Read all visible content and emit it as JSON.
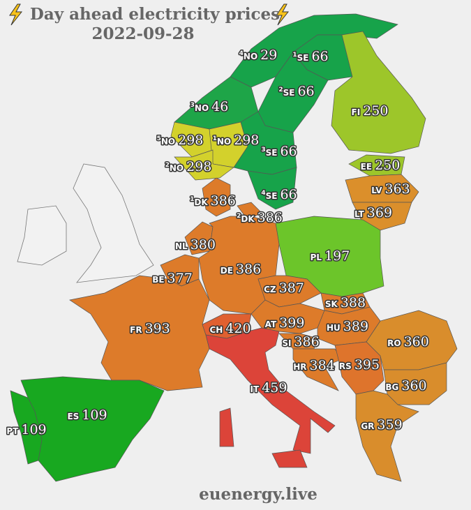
{
  "title": "Day ahead electricity prices",
  "date": "2022-09-28",
  "source": "euenergy.live",
  "regions": [
    {
      "code": "NO",
      "zone": "4",
      "price": 29,
      "color": "#17a34a"
    },
    {
      "code": "SE",
      "zone": "1",
      "price": 66,
      "color": "#17a34a"
    },
    {
      "code": "SE",
      "zone": "2",
      "price": 66,
      "color": "#17a34a"
    },
    {
      "code": "NO",
      "zone": "3",
      "price": 46,
      "color": "#1ea548"
    },
    {
      "code": "FI",
      "price": 250,
      "color": "#9dc62a"
    },
    {
      "code": "NO",
      "zone": "5",
      "price": 298,
      "color": "#d3d12c"
    },
    {
      "code": "NO",
      "zone": "1",
      "price": 298,
      "color": "#d3d12c"
    },
    {
      "code": "SE",
      "zone": "3",
      "price": 66,
      "color": "#17a34a"
    },
    {
      "code": "NO",
      "zone": "2",
      "price": 298,
      "color": "#d3d12c"
    },
    {
      "code": "EE",
      "price": 250,
      "color": "#9dc62a"
    },
    {
      "code": "SE",
      "zone": "4",
      "price": 66,
      "color": "#17a34a"
    },
    {
      "code": "LV",
      "price": 363,
      "color": "#db8f2b"
    },
    {
      "code": "DK",
      "zone": "1",
      "price": 386,
      "color": "#dd7b2a"
    },
    {
      "code": "LT",
      "price": 369,
      "color": "#db8f2b"
    },
    {
      "code": "DK",
      "zone": "2",
      "price": 386,
      "color": "#dd7b2a"
    },
    {
      "code": "NL",
      "price": 380,
      "color": "#dd7b2a"
    },
    {
      "code": "PL",
      "price": 197,
      "color": "#6cc52a"
    },
    {
      "code": "DE",
      "price": 386,
      "color": "#dd7b2a"
    },
    {
      "code": "BE",
      "price": 377,
      "color": "#dd7b2a"
    },
    {
      "code": "CZ",
      "price": 387,
      "color": "#dd7b2a"
    },
    {
      "code": "SK",
      "price": 388,
      "color": "#dd7b2a"
    },
    {
      "code": "FR",
      "price": 393,
      "color": "#dd7b2a"
    },
    {
      "code": "CH",
      "price": 420,
      "color": "#e06030"
    },
    {
      "code": "AT",
      "price": 399,
      "color": "#dd7b2a"
    },
    {
      "code": "HU",
      "price": 389,
      "color": "#dd7b2a"
    },
    {
      "code": "RO",
      "price": 360,
      "color": "#d98d2c"
    },
    {
      "code": "SI",
      "price": 386,
      "color": "#dd7b2a"
    },
    {
      "code": "HR",
      "price": 384,
      "color": "#dd7b2a"
    },
    {
      "code": "RS",
      "price": 395,
      "color": "#de742c"
    },
    {
      "code": "IT",
      "price": 459,
      "color": "#dc4439"
    },
    {
      "code": "BG",
      "price": 360,
      "color": "#d98d2c"
    },
    {
      "code": "ES",
      "price": 109,
      "color": "#18a820"
    },
    {
      "code": "PT",
      "price": 109,
      "color": "#18a820"
    },
    {
      "code": "GR",
      "price": 359,
      "color": "#d98d2c"
    }
  ]
}
